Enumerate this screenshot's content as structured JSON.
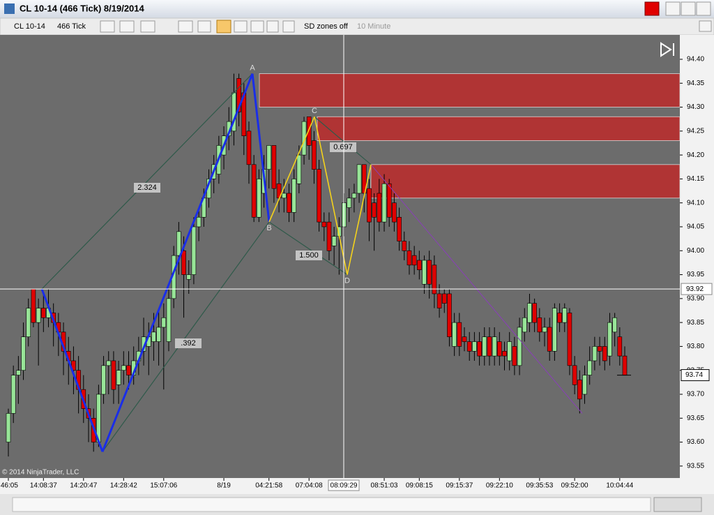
{
  "window": {
    "title": "CL 10-14 (466 Tick)  8/19/2014"
  },
  "toolbar": {
    "instrument": "CL 10-14",
    "interval": "466 Tick",
    "sd_toggle": "SD zones off",
    "second_interval": "10 Minute"
  },
  "copyright": "© 2014 NinjaTrader, LLC",
  "chart_data": {
    "type": "candlestick",
    "up_color": "#98e598",
    "down_color": "#e00000",
    "ylim": [
      93.525,
      94.451
    ],
    "yticks": [
      {
        "value": 94.4,
        "label": "94.40"
      },
      94.35,
      {
        "value": 94.3,
        "label": "94.30"
      },
      94.25,
      {
        "value": 94.2,
        "label": "94.20"
      },
      94.15,
      {
        "value": 94.1,
        "label": "94.10"
      },
      94.05,
      {
        "value": 94.0,
        "label": "94.00"
      },
      93.95,
      {
        "value": 93.9,
        "label": "93.90"
      },
      93.85,
      {
        "value": 93.8,
        "label": "93.80"
      },
      93.75,
      {
        "value": 93.7,
        "label": "93.70"
      },
      93.65,
      {
        "value": 93.6,
        "label": "93.60"
      },
      93.55
    ],
    "last_price": 93.74,
    "crosshair": {
      "price": 93.92,
      "time": "08:09:29"
    },
    "zones": [
      {
        "top": 94.37,
        "bottom": 94.3
      },
      {
        "top": 94.28,
        "bottom": 94.23
      },
      {
        "top": 94.18,
        "bottom": 94.11
      }
    ],
    "pattern_points": [
      {
        "price": 93.92
      },
      {
        "price": 93.58
      },
      {
        "label": "A",
        "price": 94.37
      },
      {
        "label": "B",
        "price": 94.06
      },
      {
        "label": "C",
        "price": 94.28
      },
      {
        "label": "D",
        "price": 93.95
      },
      {
        "price": 94.18
      },
      {
        "price": 93.66
      }
    ],
    "ratio_labels": [
      "2.324",
      "0.697",
      "1.500",
      ".392"
    ],
    "candles": [
      {
        "open": 93.6,
        "high": 93.67,
        "low": 93.57,
        "close": 93.66,
        "time": ":46:05"
      },
      {
        "open": 93.66,
        "high": 93.76,
        "low": 93.64,
        "close": 93.74
      },
      {
        "open": 93.74,
        "high": 93.78,
        "low": 93.68,
        "close": 93.75
      },
      {
        "open": 93.75,
        "high": 93.85,
        "low": 93.73,
        "close": 93.82
      },
      {
        "open": 93.82,
        "high": 93.9,
        "low": 93.8,
        "close": 93.88
      },
      {
        "open": 93.92,
        "high": 93.92,
        "low": 93.84,
        "close": 93.85
      },
      {
        "open": 93.85,
        "high": 93.9,
        "low": 93.76,
        "close": 93.88
      },
      {
        "open": 93.88,
        "high": 93.91,
        "low": 93.83,
        "close": 93.86,
        "time": "14:08:37"
      },
      {
        "open": 93.86,
        "high": 93.92,
        "low": 93.84,
        "close": 93.88
      },
      {
        "open": 93.87,
        "high": 93.89,
        "low": 93.8,
        "close": 93.85
      },
      {
        "open": 93.85,
        "high": 93.87,
        "low": 93.78,
        "close": 93.83
      },
      {
        "open": 93.83,
        "high": 93.85,
        "low": 93.74,
        "close": 93.79
      },
      {
        "open": 93.79,
        "high": 93.82,
        "low": 93.72,
        "close": 93.77
      },
      {
        "open": 93.77,
        "high": 93.8,
        "low": 93.7,
        "close": 93.75
      },
      {
        "open": 93.75,
        "high": 93.78,
        "low": 93.66,
        "close": 93.71
      },
      {
        "open": 93.71,
        "high": 93.74,
        "low": 93.64,
        "close": 93.67,
        "time": "14:20:47"
      },
      {
        "open": 93.67,
        "high": 93.7,
        "low": 93.6,
        "close": 93.65
      },
      {
        "open": 93.65,
        "high": 93.67,
        "low": 93.58,
        "close": 93.6
      },
      {
        "open": 93.6,
        "high": 93.72,
        "low": 93.59,
        "close": 93.7
      },
      {
        "open": 93.7,
        "high": 93.78,
        "low": 93.68,
        "close": 93.76
      },
      {
        "open": 93.76,
        "high": 93.79,
        "low": 93.7,
        "close": 93.77
      },
      {
        "open": 93.77,
        "high": 93.79,
        "low": 93.68,
        "close": 93.71
      },
      {
        "open": 93.72,
        "high": 93.77,
        "low": 93.68,
        "close": 93.75
      },
      {
        "open": 93.75,
        "high": 93.79,
        "low": 93.72,
        "close": 93.76,
        "time": "14:28:42"
      },
      {
        "open": 93.76,
        "high": 93.79,
        "low": 93.71,
        "close": 93.74
      },
      {
        "open": 93.74,
        "high": 93.8,
        "low": 93.72,
        "close": 93.77
      },
      {
        "open": 93.77,
        "high": 93.82,
        "low": 93.74,
        "close": 93.79
      },
      {
        "open": 93.79,
        "high": 93.86,
        "low": 93.76,
        "close": 93.82
      },
      {
        "open": 93.8,
        "high": 93.85,
        "low": 93.74,
        "close": 93.82
      },
      {
        "open": 93.81,
        "high": 93.87,
        "low": 93.77,
        "close": 93.83
      },
      {
        "open": 93.81,
        "high": 93.88,
        "low": 93.76,
        "close": 93.84
      },
      {
        "open": 93.84,
        "high": 93.89,
        "low": 93.71,
        "close": 93.86,
        "time": "15:07:06"
      },
      {
        "open": 93.81,
        "high": 93.92,
        "low": 93.79,
        "close": 93.9
      },
      {
        "open": 93.9,
        "high": 94.01,
        "low": 93.88,
        "close": 93.99
      },
      {
        "open": 93.99,
        "high": 94.06,
        "low": 93.95,
        "close": 94.04
      },
      {
        "open": 94.0,
        "high": 94.03,
        "low": 93.86,
        "close": 93.95
      },
      {
        "open": 93.94,
        "high": 93.98,
        "low": 93.91,
        "close": 93.95
      },
      {
        "open": 93.95,
        "high": 94.07,
        "low": 93.93,
        "close": 94.05
      },
      {
        "open": 94.05,
        "high": 94.09,
        "low": 94.02,
        "close": 94.07
      },
      {
        "open": 94.07,
        "high": 94.13,
        "low": 94.05,
        "close": 94.11
      },
      {
        "open": 94.11,
        "high": 94.17,
        "low": 94.09,
        "close": 94.15
      },
      {
        "open": 94.15,
        "high": 94.2,
        "low": 94.12,
        "close": 94.18
      },
      {
        "open": 94.16,
        "high": 94.24,
        "low": 94.14,
        "close": 94.22
      },
      {
        "open": 94.2,
        "high": 94.26,
        "low": 94.17,
        "close": 94.24,
        "time": "8/19"
      },
      {
        "open": 94.24,
        "high": 94.3,
        "low": 94.21,
        "close": 94.27
      },
      {
        "open": 94.25,
        "high": 94.37,
        "low": 94.22,
        "close": 94.33
      },
      {
        "open": 94.36,
        "high": 94.37,
        "low": 94.26,
        "close": 94.29
      },
      {
        "open": 94.33,
        "high": 94.35,
        "low": 94.2,
        "close": 94.24
      },
      {
        "open": 94.25,
        "high": 94.27,
        "low": 94.14,
        "close": 94.18
      },
      {
        "open": 94.18,
        "high": 94.2,
        "low": 94.06,
        "close": 94.07
      },
      {
        "open": 94.07,
        "high": 94.17,
        "low": 94.06,
        "close": 94.15
      },
      {
        "open": 94.12,
        "high": 94.2,
        "low": 94.09,
        "close": 94.17
      },
      {
        "open": 94.17,
        "high": 94.22,
        "low": 94.13,
        "close": 94.22,
        "time": "04:21:58"
      },
      {
        "open": 94.22,
        "high": 94.22,
        "low": 94.1,
        "close": 94.13
      },
      {
        "open": 94.14,
        "high": 94.17,
        "low": 94.08,
        "close": 94.11
      },
      {
        "open": 94.11,
        "high": 94.15,
        "low": 94.08,
        "close": 94.12
      },
      {
        "open": 94.12,
        "high": 94.14,
        "low": 94.06,
        "close": 94.08
      },
      {
        "open": 94.08,
        "high": 94.17,
        "low": 94.06,
        "close": 94.15
      },
      {
        "open": 94.14,
        "high": 94.22,
        "low": 94.12,
        "close": 94.2
      },
      {
        "open": 94.2,
        "high": 94.28,
        "low": 94.18,
        "close": 94.27
      },
      {
        "open": 94.28,
        "high": 94.28,
        "low": 94.19,
        "close": 94.22,
        "time": "07:04:08"
      },
      {
        "open": 94.23,
        "high": 94.25,
        "low": 94.14,
        "close": 94.17
      },
      {
        "open": 94.17,
        "high": 94.19,
        "low": 94.04,
        "close": 94.06
      },
      {
        "open": 94.06,
        "high": 94.08,
        "low": 94.02,
        "close": 94.05
      },
      {
        "open": 94.06,
        "high": 94.08,
        "low": 93.98,
        "close": 94.0
      },
      {
        "open": 94.01,
        "high": 94.05,
        "low": 93.97,
        "close": 94.03
      },
      {
        "open": 94.03,
        "high": 94.07,
        "low": 93.95,
        "close": 94.05
      },
      {
        "open": 94.05,
        "high": 94.12,
        "low": 94.03,
        "close": 94.1
      },
      {
        "open": 94.09,
        "high": 94.13,
        "low": 94.06,
        "close": 94.11
      },
      {
        "open": 94.11,
        "high": 94.14,
        "low": 94.08,
        "close": 94.12
      },
      {
        "open": 94.12,
        "high": 94.18,
        "low": 94.1,
        "close": 94.18
      },
      {
        "open": 94.18,
        "high": 94.18,
        "low": 94.08,
        "close": 94.12
      },
      {
        "open": 94.13,
        "high": 94.15,
        "low": 94.02,
        "close": 94.06
      },
      {
        "open": 94.1,
        "high": 94.12,
        "low": 94.0,
        "close": 94.07
      },
      {
        "open": 94.12,
        "high": 94.15,
        "low": 94.04,
        "close": 94.06
      },
      {
        "open": 94.06,
        "high": 94.16,
        "low": 94.04,
        "close": 94.14,
        "time": "08:51:03"
      },
      {
        "open": 94.14,
        "high": 94.15,
        "low": 94.05,
        "close": 94.07
      },
      {
        "open": 94.1,
        "high": 94.12,
        "low": 94.04,
        "close": 94.06
      },
      {
        "open": 94.07,
        "high": 94.09,
        "low": 94.0,
        "close": 94.02
      },
      {
        "open": 94.02,
        "high": 94.04,
        "low": 93.98,
        "close": 94.0
      },
      {
        "open": 94.0,
        "high": 94.02,
        "low": 93.95,
        "close": 93.97
      },
      {
        "open": 93.99,
        "high": 94.01,
        "low": 93.95,
        "close": 93.97
      },
      {
        "open": 93.98,
        "high": 94.0,
        "low": 93.94,
        "close": 93.96,
        "time": "09:08:15"
      },
      {
        "open": 93.93,
        "high": 93.99,
        "low": 93.91,
        "close": 93.98
      },
      {
        "open": 93.98,
        "high": 94.0,
        "low": 93.9,
        "close": 93.93
      },
      {
        "open": 93.97,
        "high": 93.99,
        "low": 93.88,
        "close": 93.91
      },
      {
        "open": 93.91,
        "high": 93.93,
        "low": 93.86,
        "close": 93.88
      },
      {
        "open": 93.91,
        "high": 93.92,
        "low": 93.87,
        "close": 93.89
      },
      {
        "open": 93.91,
        "high": 93.92,
        "low": 93.8,
        "close": 93.82
      },
      {
        "open": 93.8,
        "high": 93.87,
        "low": 93.78,
        "close": 93.85
      },
      {
        "open": 93.85,
        "high": 93.87,
        "low": 93.78,
        "close": 93.8,
        "time": "09:15:37"
      },
      {
        "open": 93.82,
        "high": 93.84,
        "low": 93.79,
        "close": 93.81
      },
      {
        "open": 93.81,
        "high": 93.83,
        "low": 93.77,
        "close": 93.79
      },
      {
        "open": 93.79,
        "high": 93.83,
        "low": 93.77,
        "close": 93.81
      },
      {
        "open": 93.81,
        "high": 93.83,
        "low": 93.76,
        "close": 93.78
      },
      {
        "open": 93.78,
        "high": 93.84,
        "low": 93.76,
        "close": 93.82
      },
      {
        "open": 93.82,
        "high": 93.84,
        "low": 93.76,
        "close": 93.78
      },
      {
        "open": 93.78,
        "high": 93.84,
        "low": 93.76,
        "close": 93.82
      },
      {
        "open": 93.81,
        "high": 93.83,
        "low": 93.76,
        "close": 93.78,
        "time": "09:22:10"
      },
      {
        "open": 93.79,
        "high": 93.81,
        "low": 93.75,
        "close": 93.78
      },
      {
        "open": 93.77,
        "high": 93.83,
        "low": 93.75,
        "close": 93.81
      },
      {
        "open": 93.8,
        "high": 93.82,
        "low": 93.74,
        "close": 93.76
      },
      {
        "open": 93.76,
        "high": 93.86,
        "low": 93.74,
        "close": 93.84
      },
      {
        "open": 93.83,
        "high": 93.88,
        "low": 93.81,
        "close": 93.86
      },
      {
        "open": 93.85,
        "high": 93.91,
        "low": 93.83,
        "close": 93.89
      },
      {
        "open": 93.89,
        "high": 93.9,
        "low": 93.83,
        "close": 93.85
      },
      {
        "open": 93.86,
        "high": 93.88,
        "low": 93.81,
        "close": 93.83,
        "time": "09:35:53"
      },
      {
        "open": 93.83,
        "high": 93.86,
        "low": 93.8,
        "close": 93.84
      },
      {
        "open": 93.84,
        "high": 93.86,
        "low": 93.77,
        "close": 93.79
      },
      {
        "open": 93.79,
        "high": 93.89,
        "low": 93.77,
        "close": 93.88
      },
      {
        "open": 93.87,
        "high": 93.89,
        "low": 93.83,
        "close": 93.85
      },
      {
        "open": 93.85,
        "high": 93.89,
        "low": 93.83,
        "close": 93.88
      },
      {
        "open": 93.87,
        "high": 93.88,
        "low": 93.74,
        "close": 93.76
      },
      {
        "open": 93.76,
        "high": 93.78,
        "low": 93.7,
        "close": 93.72,
        "time": "09:52:00"
      },
      {
        "open": 93.73,
        "high": 93.75,
        "low": 93.66,
        "close": 93.69
      },
      {
        "open": 93.7,
        "high": 93.76,
        "low": 93.68,
        "close": 93.74
      },
      {
        "open": 93.74,
        "high": 93.8,
        "low": 93.72,
        "close": 93.77
      },
      {
        "open": 93.77,
        "high": 93.82,
        "low": 93.75,
        "close": 93.8
      },
      {
        "open": 93.8,
        "high": 93.82,
        "low": 93.76,
        "close": 93.79
      },
      {
        "open": 93.8,
        "high": 93.82,
        "low": 93.75,
        "close": 93.77
      },
      {
        "open": 93.78,
        "high": 93.87,
        "low": 93.76,
        "close": 93.85
      },
      {
        "open": 93.83,
        "high": 93.87,
        "low": 93.8,
        "close": 93.86
      },
      {
        "open": 93.82,
        "high": 93.84,
        "low": 93.76,
        "close": 93.78,
        "time": "10:04:44"
      },
      {
        "open": 93.78,
        "high": 93.8,
        "low": 93.74,
        "close": 93.74
      }
    ]
  }
}
